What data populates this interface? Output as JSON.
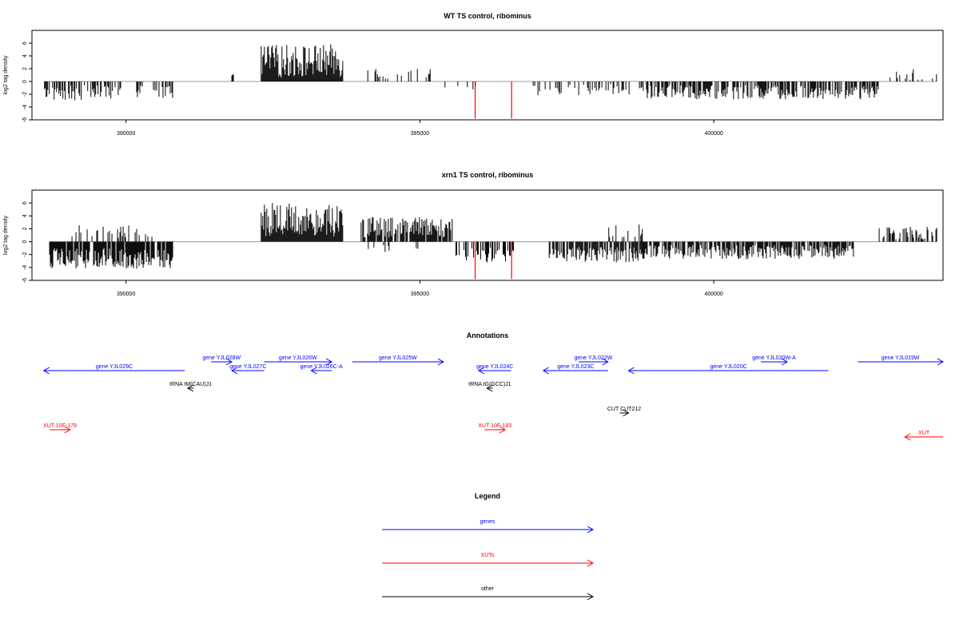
{
  "chart_data": [
    {
      "type": "bar",
      "title": "WT TS control, ribominus",
      "xlabel": "",
      "ylabel": "log2 tag density",
      "xlim": [
        388400,
        403900
      ],
      "ylim": [
        -6,
        8
      ],
      "x_ticks": [
        390000,
        395000,
        400000
      ],
      "x_tick_labels": [
        "390000",
        "395000",
        "400000"
      ],
      "y_ticks": [
        -6,
        -4,
        -2,
        0,
        2,
        4,
        6
      ],
      "y_tick_labels": [
        "-6",
        "-4",
        "-2",
        "0",
        "2",
        "4",
        "6"
      ],
      "grid": false,
      "profile": [
        {
          "x0": 388600,
          "x1": 389800,
          "mean": -1.8,
          "amp": 1.2,
          "density": 0.55
        },
        {
          "x0": 389800,
          "x1": 390800,
          "mean": -1.6,
          "amp": 1.1,
          "density": 0.35
        },
        {
          "x0": 391800,
          "x1": 391830,
          "mean": 1.0,
          "amp": 0.1,
          "density": 1
        },
        {
          "x0": 392300,
          "x1": 393700,
          "mean": 3.2,
          "amp": 2.6,
          "density": 1.0
        },
        {
          "x0": 394100,
          "x1": 395300,
          "mean": 1.2,
          "amp": 0.9,
          "density": 0.18
        },
        {
          "x0": 395400,
          "x1": 396000,
          "mean": -0.8,
          "amp": 0.5,
          "density": 0.1
        },
        {
          "x0": 396900,
          "x1": 398800,
          "mean": -1.3,
          "amp": 0.9,
          "density": 0.25
        },
        {
          "x0": 398800,
          "x1": 402800,
          "mean": -1.7,
          "amp": 1.1,
          "density": 0.55
        },
        {
          "x0": 403000,
          "x1": 403800,
          "mean": 1.0,
          "amp": 1.0,
          "density": 0.25
        }
      ],
      "highlight_bars": [
        {
          "x": 395940,
          "value": -5.8,
          "color": "#ff0000"
        },
        {
          "x": 396560,
          "value": -5.8,
          "color": "#ff0000"
        }
      ]
    },
    {
      "type": "bar",
      "title": "xrn1 TS control, ribominus",
      "xlabel": "",
      "ylabel": "log2 tag density",
      "xlim": [
        388400,
        403900
      ],
      "ylim": [
        -6,
        8
      ],
      "x_ticks": [
        390000,
        395000,
        400000
      ],
      "x_tick_labels": [
        "390000",
        "395000",
        "400000"
      ],
      "y_ticks": [
        -6,
        -4,
        -2,
        0,
        2,
        4,
        6
      ],
      "y_tick_labels": [
        "-6",
        "-4",
        "-2",
        "0",
        "2",
        "4",
        "6"
      ],
      "grid": false,
      "profile": [
        {
          "x0": 388700,
          "x1": 390800,
          "mean": -2.6,
          "amp": 1.6,
          "density": 0.85
        },
        {
          "x0": 388700,
          "x1": 390500,
          "mean": 1.4,
          "amp": 1.2,
          "density": 0.25
        },
        {
          "x0": 392300,
          "x1": 393700,
          "mean": 3.4,
          "amp": 2.6,
          "density": 1.0
        },
        {
          "x0": 394000,
          "x1": 395600,
          "mean": 2.2,
          "amp": 1.6,
          "density": 0.85
        },
        {
          "x0": 394000,
          "x1": 395000,
          "mean": -1.0,
          "amp": 0.6,
          "density": 0.1
        },
        {
          "x0": 395600,
          "x1": 396600,
          "mean": -2.2,
          "amp": 1.3,
          "density": 0.6
        },
        {
          "x0": 397200,
          "x1": 398800,
          "mean": -2.0,
          "amp": 1.2,
          "density": 0.75
        },
        {
          "x0": 398200,
          "x1": 398800,
          "mean": 1.8,
          "amp": 1.2,
          "density": 0.3
        },
        {
          "x0": 398800,
          "x1": 402400,
          "mean": -1.6,
          "amp": 1.1,
          "density": 0.7
        },
        {
          "x0": 402800,
          "x1": 403800,
          "mean": 1.3,
          "amp": 1.0,
          "density": 0.6
        }
      ],
      "highlight_bars": [
        {
          "x": 395940,
          "value": -5.8,
          "color": "#ff0000"
        },
        {
          "x": 396560,
          "value": -5.8,
          "color": "#ff0000"
        }
      ]
    }
  ],
  "annotations": {
    "title": "Annotations",
    "xlim": [
      388400,
      403900
    ],
    "features": [
      {
        "label": "gene YJL029C",
        "start": 388600,
        "end": 391000,
        "strand": "-",
        "kind": "gene",
        "row": 2
      },
      {
        "label": "gene YJL028W",
        "start": 391450,
        "end": 391800,
        "strand": "+",
        "kind": "gene",
        "row": 1
      },
      {
        "label": "gene YJL027C",
        "start": 391800,
        "end": 392350,
        "strand": "-",
        "kind": "gene",
        "row": 2
      },
      {
        "label": "gene YJL026W",
        "start": 392350,
        "end": 393500,
        "strand": "+",
        "kind": "gene",
        "row": 1
      },
      {
        "label": "gene YJL026C-A",
        "start": 393150,
        "end": 393500,
        "strand": "-",
        "kind": "gene",
        "row": 2
      },
      {
        "label": "gene YJL025W",
        "start": 393850,
        "end": 395400,
        "strand": "+",
        "kind": "gene",
        "row": 1
      },
      {
        "label": "gene YJL024C",
        "start": 396000,
        "end": 396550,
        "strand": "-",
        "kind": "gene",
        "row": 2
      },
      {
        "label": "gene YJL023C",
        "start": 397100,
        "end": 398200,
        "strand": "-",
        "kind": "gene",
        "row": 2
      },
      {
        "label": "gene YJL022W",
        "start": 397700,
        "end": 398200,
        "strand": "+",
        "kind": "gene",
        "row": 1
      },
      {
        "label": "gene YJL020C",
        "start": 398550,
        "end": 401950,
        "strand": "-",
        "kind": "gene",
        "row": 2
      },
      {
        "label": "gene YJL020W-A",
        "start": 400800,
        "end": 401250,
        "strand": "+",
        "kind": "gene",
        "row": 1
      },
      {
        "label": "gene YJL019W",
        "start": 402450,
        "end": 403900,
        "strand": "+",
        "kind": "gene",
        "row": 1
      },
      {
        "label": "tRNA tM(CAU)J1",
        "start": 391050,
        "end": 391150,
        "strand": "-",
        "kind": "other",
        "row": 3
      },
      {
        "label": "tRNA tG(GCC)J1",
        "start": 396140,
        "end": 396240,
        "strand": "-",
        "kind": "other",
        "row": 3
      },
      {
        "label": "CUT CUT212",
        "start": 398400,
        "end": 398550,
        "strand": "+",
        "kind": "other",
        "row": 4
      },
      {
        "label": "XUT 10F-179",
        "start": 388700,
        "end": 389050,
        "strand": "+",
        "kind": "xut",
        "row": 5
      },
      {
        "label": "XUT 10F-183",
        "start": 396100,
        "end": 396450,
        "strand": "+",
        "kind": "xut",
        "row": 5
      },
      {
        "label": "XUT",
        "start": 403250,
        "end": 403900,
        "strand": "-",
        "kind": "xut",
        "row": 6
      }
    ]
  },
  "legend": {
    "title": "Legend",
    "items": [
      {
        "label": "genes",
        "color": "#0000ff"
      },
      {
        "label": "XUTs",
        "color": "#ff0000"
      },
      {
        "label": "other",
        "color": "#000000"
      }
    ]
  },
  "colors": {
    "gene": "#0000ff",
    "xut": "#ff0000",
    "other": "#000000",
    "bar": "#000000",
    "zero_line": "#999999"
  }
}
